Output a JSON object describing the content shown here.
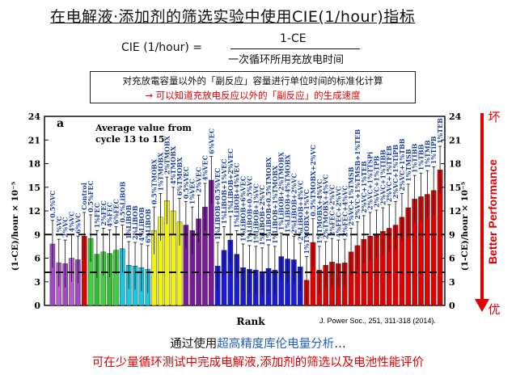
{
  "title": "在电解液·添加剂的筛选实验中使用CIE(1/hour)指标",
  "formula": {
    "lhs": "CIE (1/hour) =",
    "numerator": "1-CE",
    "denominator": "一次循环所用充放电时间"
  },
  "note": {
    "line1": "对充放電容量以外的「副反应」容量进行单位时间的标准化计算",
    "line2": "→ 可以知道充放电反应以外的「副反应」的生成速度"
  },
  "chart_data": {
    "type": "bar",
    "panel_label": "a",
    "annotation": "Average value from cycle 13 to 15",
    "xlabel": "Rank",
    "ylabel_left": "(1-CE)/hour × 10⁻⁵",
    "ylabel_right": "(1-CE)/hour × 10⁻⁵",
    "ylim": [
      0,
      24
    ],
    "yticks": [
      0,
      3,
      6,
      9,
      12,
      15,
      18,
      21,
      24
    ],
    "dashed_lines": [
      4.2,
      9.0
    ],
    "citation": "J. Power Soc., 251, 311-318 (2014).",
    "right_arrow": {
      "top": "坏",
      "label": "Better Performance",
      "bottom": "优"
    },
    "bars": [
      {
        "label": "0.5%VC",
        "value": 7.8,
        "color": "#a347c7"
      },
      {
        "label": "1%VC",
        "value": 5.4,
        "color": "#b85ad2"
      },
      {
        "label": "2%VC",
        "value": 5.3,
        "color": "#a347c7"
      },
      {
        "label": "4%VC",
        "value": 6.0,
        "color": "#b85ad2"
      },
      {
        "label": "6%VC",
        "value": 5.8,
        "color": "#a347c7"
      },
      {
        "label": "Control",
        "value": 8.8,
        "color": "#e00000"
      },
      {
        "label": "0.5%FEC",
        "value": 8.5,
        "color": "#3fcf3f"
      },
      {
        "label": "1%FEC",
        "value": 6.5,
        "color": "#2fbf2f"
      },
      {
        "label": "2%FEC",
        "value": 6.8,
        "color": "#3fcf3f"
      },
      {
        "label": "4%FEC",
        "value": 6.6,
        "color": "#2fbf2f"
      },
      {
        "label": "6%FEC",
        "value": 7.0,
        "color": "#3fcf3f"
      },
      {
        "label": "0.5%LiBOB",
        "value": 7.2,
        "color": "#17c8e0"
      },
      {
        "label": "1%LiBOB",
        "value": 5.1,
        "color": "#17c8e0"
      },
      {
        "label": "2%LiBOB",
        "value": 5.0,
        "color": "#17c8e0"
      },
      {
        "label": "4%LiBOB",
        "value": 4.8,
        "color": "#17c8e0"
      },
      {
        "label": "6%LiBOB",
        "value": 4.6,
        "color": "#17c8e0"
      },
      {
        "label": "0.5%TMOBX",
        "value": 9.5,
        "color": "#f2f20a"
      },
      {
        "label": "1%TMOBX",
        "value": 11.2,
        "color": "#f2f20a"
      },
      {
        "label": "2%TMOBX",
        "value": 13.3,
        "color": "#f2f20a"
      },
      {
        "label": "4%TMOBX",
        "value": 12.0,
        "color": "#f2f20a"
      },
      {
        "label": "6%TMOBX",
        "value": 10.6,
        "color": "#f2f20a"
      },
      {
        "label": "0.5%VEC",
        "value": 10.2,
        "color": "#7a1a9a"
      },
      {
        "label": "1%VEC",
        "value": 9.5,
        "color": "#7a1a9a"
      },
      {
        "label": "2%VEC",
        "value": 11.0,
        "color": "#7a1a9a"
      },
      {
        "label": "4%VEC",
        "value": 12.5,
        "color": "#7a1a9a"
      },
      {
        "label": "6%VEC",
        "value": 15.9,
        "color": "#7a1a9a"
      },
      {
        "label": "1%LiBOB+0.5%VEC",
        "value": 5.0,
        "color": "#1a1ad8"
      },
      {
        "label": "1%LiBOB+1%VEC",
        "value": 7.0,
        "color": "#1a1ad8"
      },
      {
        "label": "1%LiBOB+2%VEC",
        "value": 8.3,
        "color": "#1a1ad8"
      },
      {
        "label": "1%LiBOB+4%VEC",
        "value": 6.5,
        "color": "#1a1ad8"
      },
      {
        "label": "1%LiBOB+6%VEC",
        "value": 4.8,
        "color": "#1a1ad8"
      },
      {
        "label": "1%LiBOB+0.5%VC",
        "value": 4.6,
        "color": "#1a1ad8"
      },
      {
        "label": "1%LiBOB+1%VC",
        "value": 4.5,
        "color": "#1a1ad8"
      },
      {
        "label": "1%LiBOB+2%VC",
        "value": 4.3,
        "color": "#1a1ad8"
      },
      {
        "label": "1%LiBOB+0.5%TMOBX",
        "value": 4.7,
        "color": "#1a1ad8"
      },
      {
        "label": "1%LiBOB+1%TMOBX",
        "value": 4.5,
        "color": "#1a1ad8"
      },
      {
        "label": "1%LiBOB+2%TMOBX",
        "value": 6.2,
        "color": "#1a1ad8"
      },
      {
        "label": "1%LiBOB+4%TMOBX",
        "value": 5.9,
        "color": "#1a1ad8"
      },
      {
        "label": "2%LiBOB+2%VC",
        "value": 5.8,
        "color": "#1a1ad8"
      },
      {
        "label": "2%LiBOB+4%VC",
        "value": 4.9,
        "color": "#1a1ad8"
      },
      {
        "label": "1%TMOBX+1%VC",
        "value": 3.2,
        "color": "#e00000"
      },
      {
        "label": "0.5%TMOBX+2%VC",
        "value": 8.0,
        "color": "#e00000"
      },
      {
        "label": "1%TMOBX+4%VC",
        "value": 4.5,
        "color": "#e00000"
      },
      {
        "label": "2%TMOBX+4%VC",
        "value": 5.1,
        "color": "#e00000"
      },
      {
        "label": "2%FEC+2%VC",
        "value": 5.5,
        "color": "#e00000"
      },
      {
        "label": "4%FEC+2%VC",
        "value": 5.3,
        "color": "#e00000"
      },
      {
        "label": "2%FEC+4%VC",
        "value": 5.4,
        "color": "#e00000"
      },
      {
        "label": "2%VC+1%TMSB",
        "value": 6.8,
        "color": "#e00000"
      },
      {
        "label": "2%VC+1%TMSB+1%TEB",
        "value": 7.6,
        "color": "#e00000"
      },
      {
        "label": "2%VC+1%TEB",
        "value": 8.4,
        "color": "#e00000"
      },
      {
        "label": "2%VC+1%TTSPi",
        "value": 8.8,
        "color": "#e00000"
      },
      {
        "label": "2%VC+1%TPB",
        "value": 9.1,
        "color": "#e00000"
      },
      {
        "label": "2%VC+1%TIBB",
        "value": 9.4,
        "color": "#e00000"
      },
      {
        "label": "2%VC+1%TFEB",
        "value": 9.8,
        "color": "#e00000"
      },
      {
        "label": "2%VC+1%TiPB",
        "value": 10.2,
        "color": "#e00000"
      },
      {
        "label": "2%VC+1%TBB",
        "value": 11.2,
        "color": "#e00000"
      },
      {
        "label": "1%TMSB",
        "value": 12.4,
        "color": "#e00000"
      },
      {
        "label": "1%TIBB",
        "value": 13.5,
        "color": "#e00000"
      },
      {
        "label": "1%TBB",
        "value": 13.8,
        "color": "#e00000"
      },
      {
        "label": "1%TMB",
        "value": 14.1,
        "color": "#e00000"
      },
      {
        "label": "1%TiPB",
        "value": 14.6,
        "color": "#e00000"
      },
      {
        "label": "1%TEB",
        "value": 17.2,
        "color": "#e00000"
      }
    ]
  },
  "footer": {
    "line1_prefix": "通过使用",
    "line1_highlight": "超高精度库伦电量分析",
    "line1_suffix": "…",
    "line2": "可在少量循环测试中完成电解液,添加剂的筛选以及电池性能评价"
  }
}
